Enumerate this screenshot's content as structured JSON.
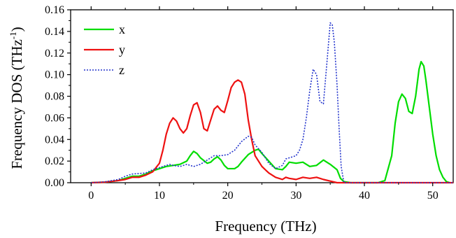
{
  "chart_data": {
    "type": "line",
    "title": "",
    "xlabel": "Frequency (THz)",
    "ylabel_main": "Frequency DOS (THz",
    "ylabel_sup": "-1",
    "ylabel_close": ")",
    "xlim": [
      -3,
      53
    ],
    "ylim": [
      0,
      0.16
    ],
    "x_ticks": [
      0,
      10,
      20,
      30,
      40,
      50
    ],
    "x_tick_labels": [
      "0",
      "10",
      "20",
      "30",
      "40",
      "50"
    ],
    "y_ticks": [
      0,
      0.02,
      0.04,
      0.06,
      0.08,
      0.1,
      0.12,
      0.14,
      0.16
    ],
    "y_tick_labels": [
      "0.00",
      "0.02",
      "0.04",
      "0.06",
      "0.08",
      "0.10",
      "0.12",
      "0.14",
      "0.16"
    ],
    "grid": false,
    "legend_position": "top-left",
    "series": [
      {
        "name": "x",
        "color": "#00dd00",
        "style": "solid",
        "points": [
          [
            0,
            0
          ],
          [
            2,
            0.0005
          ],
          [
            4,
            0.002
          ],
          [
            5,
            0.004
          ],
          [
            6,
            0.006
          ],
          [
            7,
            0.006
          ],
          [
            8,
            0.008
          ],
          [
            9,
            0.011
          ],
          [
            10,
            0.013
          ],
          [
            11,
            0.015
          ],
          [
            12,
            0.016
          ],
          [
            13,
            0.017
          ],
          [
            14,
            0.02
          ],
          [
            14.5,
            0.025
          ],
          [
            15,
            0.029
          ],
          [
            15.5,
            0.027
          ],
          [
            16,
            0.023
          ],
          [
            17,
            0.018
          ],
          [
            17.5,
            0.019
          ],
          [
            18,
            0.022
          ],
          [
            18.5,
            0.024
          ],
          [
            19,
            0.021
          ],
          [
            19.5,
            0.016
          ],
          [
            20,
            0.013
          ],
          [
            21,
            0.013
          ],
          [
            21.5,
            0.015
          ],
          [
            22,
            0.019
          ],
          [
            23,
            0.026
          ],
          [
            24,
            0.03
          ],
          [
            24.5,
            0.031
          ],
          [
            25,
            0.027
          ],
          [
            26,
            0.02
          ],
          [
            27,
            0.013
          ],
          [
            28,
            0.012
          ],
          [
            28.5,
            0.015
          ],
          [
            29,
            0.019
          ],
          [
            30,
            0.018
          ],
          [
            31,
            0.019
          ],
          [
            32,
            0.015
          ],
          [
            33,
            0.016
          ],
          [
            34,
            0.021
          ],
          [
            35,
            0.017
          ],
          [
            36,
            0.012
          ],
          [
            36.5,
            0.004
          ],
          [
            37,
            0.001
          ],
          [
            38,
            0
          ],
          [
            42,
            0
          ],
          [
            43,
            0.002
          ],
          [
            44,
            0.025
          ],
          [
            44.5,
            0.055
          ],
          [
            45,
            0.075
          ],
          [
            45.5,
            0.082
          ],
          [
            46,
            0.078
          ],
          [
            46.5,
            0.066
          ],
          [
            47,
            0.064
          ],
          [
            47.5,
            0.08
          ],
          [
            48,
            0.105
          ],
          [
            48.3,
            0.112
          ],
          [
            48.7,
            0.108
          ],
          [
            49,
            0.095
          ],
          [
            49.5,
            0.07
          ],
          [
            50,
            0.045
          ],
          [
            50.5,
            0.025
          ],
          [
            51,
            0.012
          ],
          [
            51.5,
            0.005
          ],
          [
            52,
            0.001
          ],
          [
            52.5,
            0
          ]
        ]
      },
      {
        "name": "y",
        "color": "#ee1111",
        "style": "solid",
        "points": [
          [
            0,
            0
          ],
          [
            2,
            0.0005
          ],
          [
            4,
            0.002
          ],
          [
            5,
            0.003
          ],
          [
            6,
            0.005
          ],
          [
            7,
            0.005
          ],
          [
            8,
            0.007
          ],
          [
            9,
            0.01
          ],
          [
            10,
            0.018
          ],
          [
            10.5,
            0.03
          ],
          [
            11,
            0.045
          ],
          [
            11.5,
            0.055
          ],
          [
            12,
            0.06
          ],
          [
            12.5,
            0.057
          ],
          [
            13,
            0.05
          ],
          [
            13.5,
            0.046
          ],
          [
            14,
            0.05
          ],
          [
            14.5,
            0.062
          ],
          [
            15,
            0.072
          ],
          [
            15.5,
            0.074
          ],
          [
            16,
            0.065
          ],
          [
            16.5,
            0.05
          ],
          [
            17,
            0.048
          ],
          [
            17.5,
            0.058
          ],
          [
            18,
            0.068
          ],
          [
            18.5,
            0.071
          ],
          [
            19,
            0.067
          ],
          [
            19.5,
            0.065
          ],
          [
            20,
            0.076
          ],
          [
            20.5,
            0.088
          ],
          [
            21,
            0.093
          ],
          [
            21.5,
            0.095
          ],
          [
            22,
            0.093
          ],
          [
            22.5,
            0.082
          ],
          [
            23,
            0.058
          ],
          [
            23.5,
            0.04
          ],
          [
            24,
            0.025
          ],
          [
            25,
            0.015
          ],
          [
            26,
            0.009
          ],
          [
            27,
            0.005
          ],
          [
            28,
            0.003
          ],
          [
            28.5,
            0.005
          ],
          [
            29,
            0.004
          ],
          [
            30,
            0.003
          ],
          [
            31,
            0.005
          ],
          [
            32,
            0.004
          ],
          [
            33,
            0.005
          ],
          [
            34,
            0.003
          ],
          [
            35,
            0.0015
          ],
          [
            36,
            0
          ],
          [
            53,
            0
          ]
        ]
      },
      {
        "name": "z",
        "color": "#2233cc",
        "style": "dotted",
        "points": [
          [
            0,
            0
          ],
          [
            2,
            0.0008
          ],
          [
            4,
            0.003
          ],
          [
            5,
            0.006
          ],
          [
            6,
            0.008
          ],
          [
            8,
            0.009
          ],
          [
            9,
            0.012
          ],
          [
            10,
            0.014
          ],
          [
            11,
            0.016
          ],
          [
            11.5,
            0.017
          ],
          [
            12,
            0.016
          ],
          [
            13,
            0.015
          ],
          [
            14,
            0.017
          ],
          [
            15,
            0.015
          ],
          [
            16,
            0.017
          ],
          [
            17,
            0.021
          ],
          [
            18,
            0.025
          ],
          [
            19,
            0.025
          ],
          [
            20,
            0.026
          ],
          [
            21,
            0.03
          ],
          [
            22,
            0.038
          ],
          [
            23,
            0.043
          ],
          [
            23.5,
            0.042
          ],
          [
            24,
            0.035
          ],
          [
            25,
            0.028
          ],
          [
            26,
            0.018
          ],
          [
            27,
            0.013
          ],
          [
            28,
            0.016
          ],
          [
            28.5,
            0.022
          ],
          [
            29,
            0.023
          ],
          [
            30,
            0.025
          ],
          [
            30.5,
            0.03
          ],
          [
            31,
            0.04
          ],
          [
            31.5,
            0.06
          ],
          [
            32,
            0.085
          ],
          [
            32.5,
            0.105
          ],
          [
            33,
            0.1
          ],
          [
            33.5,
            0.075
          ],
          [
            34,
            0.073
          ],
          [
            34.5,
            0.11
          ],
          [
            35,
            0.148
          ],
          [
            35.3,
            0.146
          ],
          [
            35.6,
            0.13
          ],
          [
            36,
            0.09
          ],
          [
            36.3,
            0.05
          ],
          [
            36.6,
            0.015
          ],
          [
            37,
            0
          ],
          [
            53,
            0
          ]
        ]
      }
    ]
  }
}
